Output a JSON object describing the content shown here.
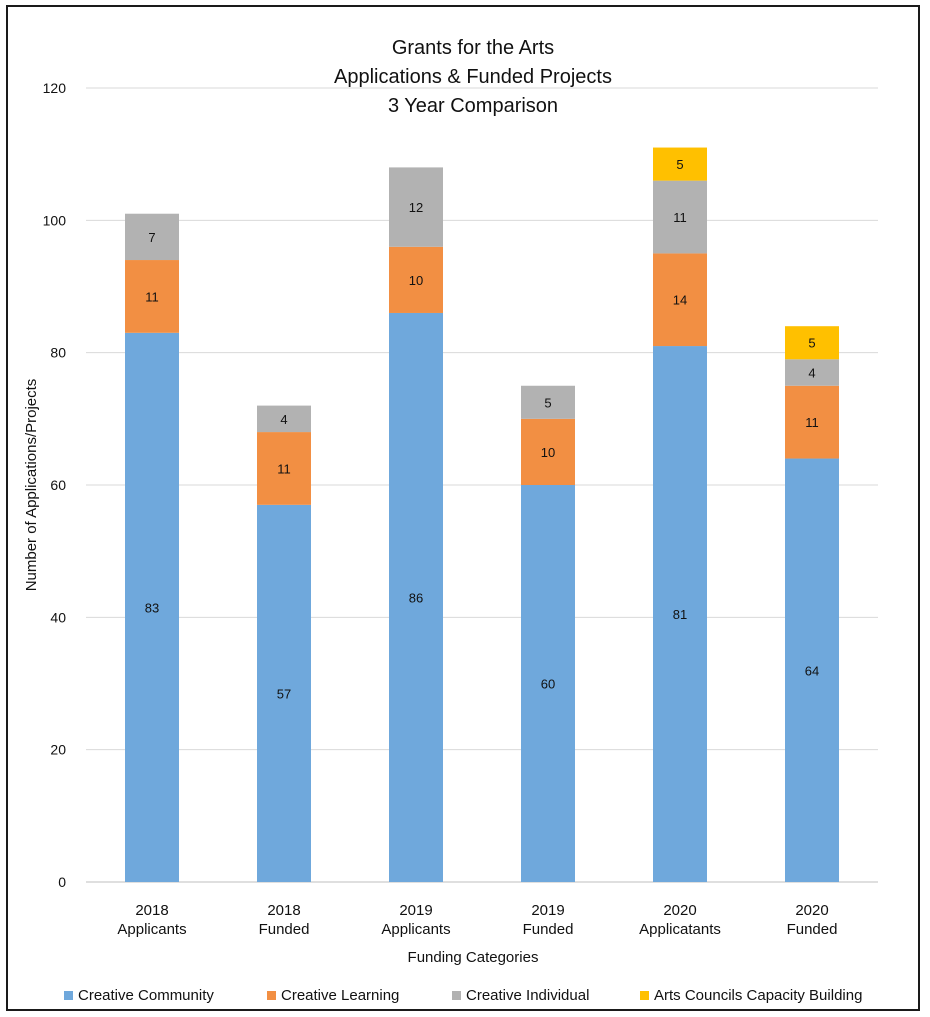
{
  "chart_data": {
    "type": "bar",
    "stacked": true,
    "title_lines": [
      "Grants for the Arts",
      "Applications & Funded Projects",
      "3 Year Comparison"
    ],
    "xlabel": "Funding Categories",
    "ylabel": "Number of Applications/Projects",
    "ylim": [
      0,
      120
    ],
    "yticks": [
      0,
      20,
      40,
      60,
      80,
      100,
      120
    ],
    "grid": true,
    "legend_position": "bottom",
    "categories": [
      [
        "2018",
        "Applicants"
      ],
      [
        "2018",
        "Funded"
      ],
      [
        "2019",
        "Applicants"
      ],
      [
        "2019",
        "Funded"
      ],
      [
        "2020",
        "Applicatants"
      ],
      [
        "2020",
        "Funded"
      ]
    ],
    "series": [
      {
        "name": "Creative Community",
        "color": "#6fa8dc",
        "values": [
          83,
          57,
          86,
          60,
          81,
          64
        ]
      },
      {
        "name": "Creative Learning",
        "color": "#f28f43",
        "values": [
          11,
          11,
          10,
          10,
          14,
          11
        ]
      },
      {
        "name": "Creative Individual",
        "color": "#b2b2b2",
        "values": [
          7,
          4,
          12,
          5,
          11,
          4
        ]
      },
      {
        "name": "Arts Councils Capacity Building",
        "color": "#ffc000",
        "values": [
          null,
          null,
          null,
          null,
          5,
          5
        ]
      }
    ]
  }
}
